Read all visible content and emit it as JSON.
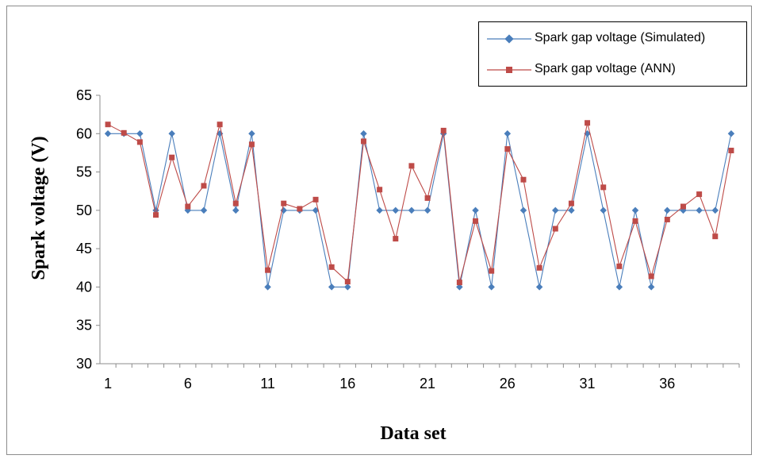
{
  "chart_data": {
    "type": "line",
    "xlabel": "Data set",
    "ylabel": "Spark voltage (V)",
    "ylim": [
      30,
      65
    ],
    "yticks": [
      "30",
      "35",
      "40",
      "45",
      "50",
      "55",
      "60",
      "65"
    ],
    "xtick_labels": [
      "1",
      "6",
      "11",
      "16",
      "21",
      "26",
      "31",
      "36"
    ],
    "grid": false,
    "legend_position": "top-right",
    "x": [
      1,
      2,
      3,
      4,
      5,
      6,
      7,
      8,
      9,
      10,
      11,
      12,
      13,
      14,
      15,
      16,
      17,
      18,
      19,
      20,
      21,
      22,
      23,
      24,
      25,
      26,
      27,
      28,
      29,
      30,
      31,
      32,
      33,
      34,
      35,
      36,
      37,
      38,
      39,
      40
    ],
    "series": [
      {
        "name": "Spark gap voltage (Simulated)",
        "color": "#4a7ebb",
        "marker": "diamond",
        "values": [
          60,
          60,
          60,
          50,
          60,
          50,
          50,
          60,
          50,
          60,
          40,
          50,
          50,
          50,
          40,
          40,
          60,
          50,
          50,
          50,
          50,
          60,
          40,
          50,
          40,
          60,
          50,
          40,
          50,
          50,
          60,
          50,
          40,
          50,
          40,
          50,
          50,
          50,
          50,
          60
        ]
      },
      {
        "name": "Spark gap voltage (ANN)",
        "color": "#be4b48",
        "marker": "square",
        "values": [
          61.2,
          60.1,
          58.9,
          49.4,
          56.9,
          50.5,
          53.2,
          61.2,
          50.9,
          58.6,
          42.2,
          50.9,
          50.2,
          51.4,
          42.6,
          40.7,
          59.0,
          52.7,
          46.3,
          55.8,
          51.6,
          60.4,
          40.6,
          48.6,
          42.1,
          58.0,
          54.0,
          42.5,
          47.6,
          50.9,
          61.4,
          53.0,
          42.7,
          48.6,
          41.4,
          48.8,
          50.5,
          52.1,
          46.6,
          57.8
        ]
      }
    ]
  }
}
